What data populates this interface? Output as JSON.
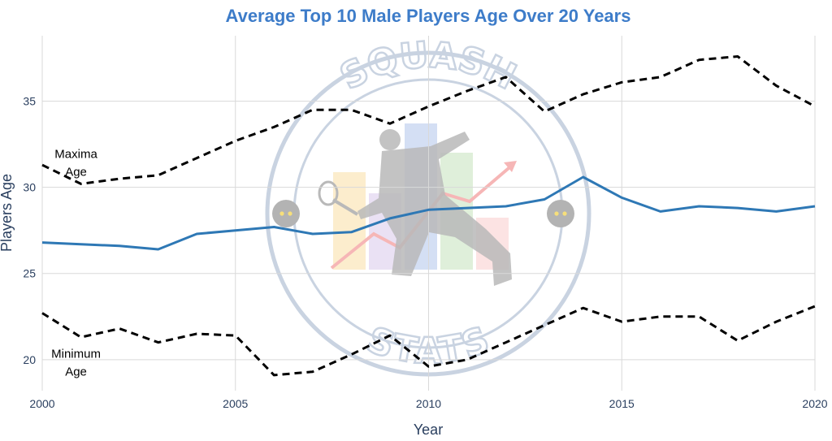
{
  "chart_data": {
    "type": "line",
    "title": "Average Top 10 Male Players Age Over 20 Years",
    "xlabel": "Year",
    "ylabel": "Players Age",
    "xlim": [
      2000,
      2020
    ],
    "ylim": [
      18.2,
      38.8
    ],
    "x_ticks": [
      2000,
      2005,
      2010,
      2015,
      2020
    ],
    "y_ticks": [
      20,
      25,
      30,
      35
    ],
    "grid": true,
    "x": [
      2000,
      2001,
      2002,
      2003,
      2004,
      2005,
      2006,
      2007,
      2008,
      2009,
      2010,
      2011,
      2012,
      2013,
      2014,
      2015,
      2016,
      2017,
      2018,
      2019,
      2020
    ],
    "series": [
      {
        "key": "maximum",
        "color": "#000000",
        "dash": "dashed",
        "values": [
          31.3,
          30.2,
          30.5,
          30.7,
          31.7,
          32.7,
          33.5,
          34.5,
          34.5,
          33.7,
          34.7,
          35.6,
          36.4,
          34.4,
          35.4,
          36.1,
          36.4,
          37.4,
          37.6,
          35.9,
          34.7
        ]
      },
      {
        "key": "average",
        "color": "#2e78b5",
        "dash": "solid",
        "values": [
          26.8,
          26.7,
          26.6,
          26.4,
          27.3,
          27.5,
          27.7,
          27.3,
          27.4,
          28.2,
          28.7,
          28.8,
          28.9,
          29.3,
          30.6,
          29.4,
          28.6,
          28.9,
          28.8,
          28.6,
          28.9
        ]
      },
      {
        "key": "minimum",
        "color": "#000000",
        "dash": "dashed",
        "values": [
          22.7,
          21.3,
          21.8,
          21.0,
          21.5,
          21.4,
          19.1,
          19.3,
          20.3,
          21.4,
          19.6,
          20.0,
          21.0,
          22.0,
          23.0,
          22.2,
          22.5,
          22.5,
          21.1,
          22.2,
          23.1
        ]
      }
    ],
    "annotations": [
      {
        "lines": [
          "Maxima",
          "Age"
        ],
        "x": 2001,
        "y": 31.7
      },
      {
        "lines": [
          "Minimum",
          "Age"
        ],
        "x": 2001,
        "y": 20.1
      }
    ],
    "watermark": {
      "top_text": "SQUASH",
      "bottom_text": "STATS"
    }
  }
}
